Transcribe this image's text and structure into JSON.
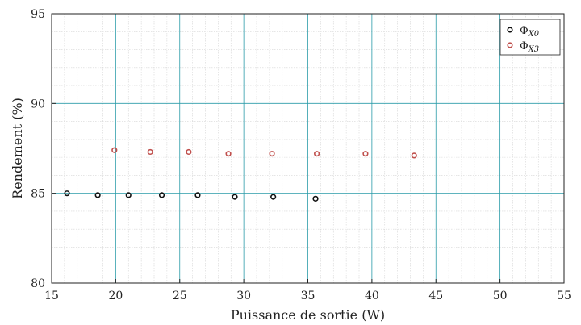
{
  "chart_data": {
    "type": "scatter",
    "xlabel": "Puissance de sortie (W)",
    "ylabel": "Rendement (%)",
    "xlim": [
      15,
      55
    ],
    "ylim": [
      80,
      95
    ],
    "xticks": [
      15,
      20,
      25,
      30,
      35,
      40,
      45,
      50,
      55
    ],
    "yticks": [
      80,
      85,
      90,
      95
    ],
    "grid": true,
    "legend_position": "top-right",
    "series": [
      {
        "name": "Φ",
        "name_sub": "X0",
        "color": "#111111",
        "points": [
          {
            "x": 16.2,
            "y": 85.0
          },
          {
            "x": 18.6,
            "y": 84.9
          },
          {
            "x": 21.0,
            "y": 84.9
          },
          {
            "x": 23.6,
            "y": 84.9
          },
          {
            "x": 26.4,
            "y": 84.9
          },
          {
            "x": 29.3,
            "y": 84.8
          },
          {
            "x": 32.3,
            "y": 84.8
          },
          {
            "x": 35.6,
            "y": 84.7
          }
        ]
      },
      {
        "name": "Φ",
        "name_sub": "X3",
        "color": "#c0504d",
        "points": [
          {
            "x": 19.9,
            "y": 87.4
          },
          {
            "x": 22.7,
            "y": 87.3
          },
          {
            "x": 25.7,
            "y": 87.3
          },
          {
            "x": 28.8,
            "y": 87.2
          },
          {
            "x": 32.2,
            "y": 87.2
          },
          {
            "x": 35.7,
            "y": 87.2
          },
          {
            "x": 39.5,
            "y": 87.2
          },
          {
            "x": 43.3,
            "y": 87.1
          }
        ]
      }
    ],
    "colors": {
      "major_grid": "#2a9ba8",
      "minor_grid": "#d6d6d6",
      "axis": "#222222"
    }
  }
}
